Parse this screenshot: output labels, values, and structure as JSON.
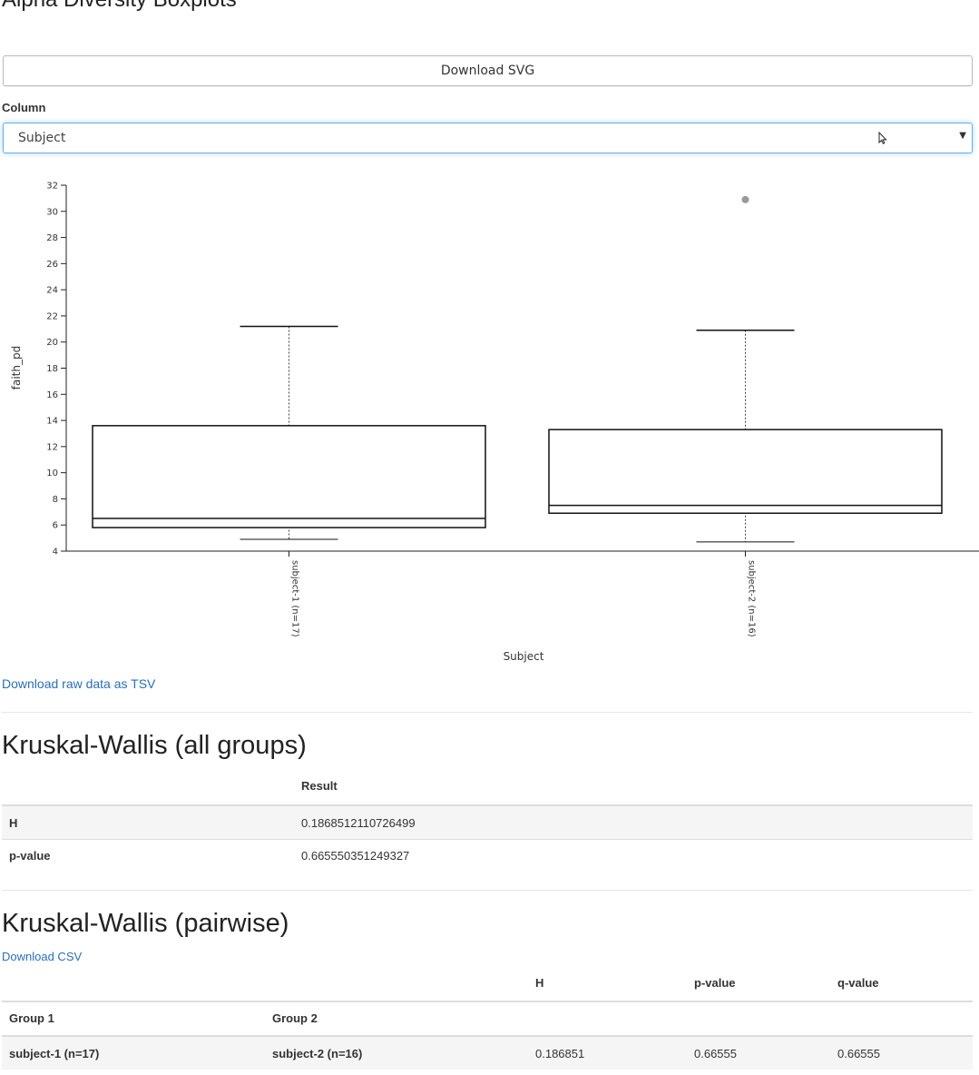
{
  "page": {
    "title": "Alpha Diversity Boxplots",
    "download_svg": "Download SVG",
    "column_label": "Column",
    "column_value": "Subject",
    "raw_link": "Download raw data as TSV"
  },
  "chart_data": {
    "type": "box",
    "xlabel": "Subject",
    "ylabel": "faith_pd",
    "ylim": [
      4,
      32
    ],
    "yticks": [
      4,
      6,
      8,
      10,
      12,
      14,
      16,
      18,
      20,
      22,
      24,
      26,
      28,
      30,
      32
    ],
    "categories": [
      "subject-1 (n=17)",
      "subject-2 (n=16)"
    ],
    "boxes": [
      {
        "label": "subject-1 (n=17)",
        "whisker_low": 4.9,
        "q1": 5.8,
        "median": 6.5,
        "q3": 13.6,
        "whisker_high": 21.2,
        "outliers": []
      },
      {
        "label": "subject-2 (n=16)",
        "whisker_low": 4.7,
        "q1": 6.9,
        "median": 7.5,
        "q3": 13.3,
        "whisker_high": 20.9,
        "outliers": [
          30.9
        ]
      }
    ],
    "grid": false,
    "legend": "none"
  },
  "kw_all": {
    "title": "Kruskal-Wallis (all groups)",
    "header": "Result",
    "rows": [
      {
        "label": "H",
        "value": "0.1868512110726499"
      },
      {
        "label": "p-value",
        "value": "0.665550351249327"
      }
    ]
  },
  "kw_pair": {
    "title": "Kruskal-Wallis (pairwise)",
    "download": "Download CSV",
    "headers": {
      "group1": "Group 1",
      "group2": "Group 2",
      "h": "H",
      "p": "p-value",
      "q": "q-value"
    },
    "rows": [
      {
        "group1": "subject-1 (n=17)",
        "group2": "subject-2 (n=16)",
        "h": "0.186851",
        "p": "0.66555",
        "q": "0.66555"
      }
    ]
  }
}
